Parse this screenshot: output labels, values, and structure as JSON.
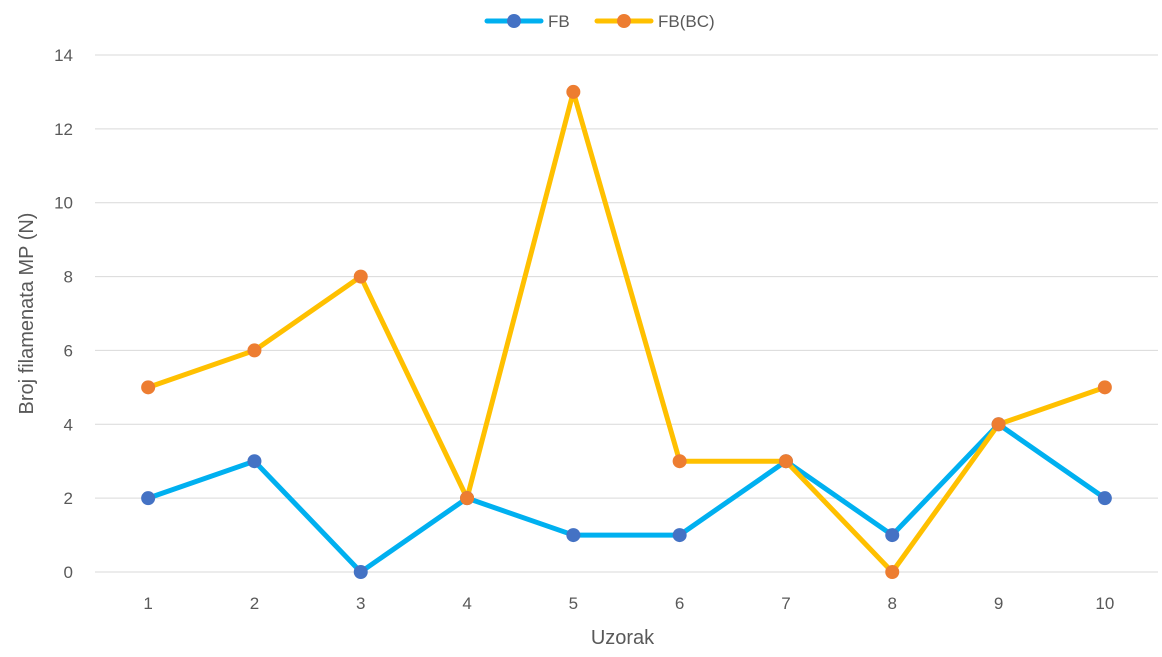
{
  "chart_data": {
    "type": "line",
    "title": "",
    "xlabel": "Uzorak",
    "ylabel": "Broj filamenata MP (N)",
    "categories": [
      "1",
      "2",
      "3",
      "4",
      "5",
      "6",
      "7",
      "8",
      "9",
      "10"
    ],
    "ylim": [
      0,
      14
    ],
    "yticks": [
      "0",
      "2",
      "4",
      "6",
      "8",
      "10",
      "12",
      "14"
    ],
    "grid": true,
    "legend_position": "top",
    "series": [
      {
        "name": "FB",
        "values": [
          2,
          3,
          0,
          2,
          1,
          1,
          3,
          1,
          4,
          2
        ],
        "line_color": "#00B0F0",
        "marker_color": "#4472C4"
      },
      {
        "name": "FB(BC)",
        "values": [
          5,
          6,
          8,
          2,
          13,
          3,
          3,
          0,
          4,
          5
        ],
        "line_color": "#FFC000",
        "marker_color": "#ED7D31"
      }
    ]
  }
}
